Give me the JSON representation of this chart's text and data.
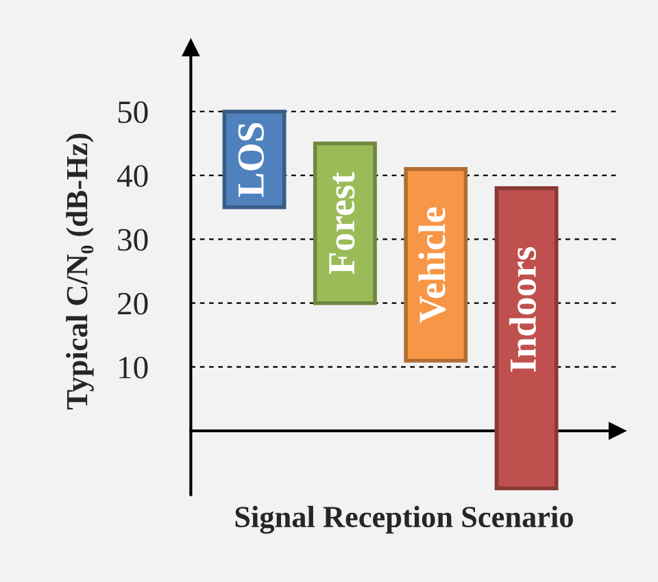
{
  "chart_data": {
    "type": "bar",
    "xlabel": "Signal Reception Scenario",
    "ylabel": "Typical C/N₀ (dB-Hz)",
    "categories": [
      "LOS",
      "Forest",
      "Vehicle",
      "Indoors"
    ],
    "base": [
      35,
      20,
      11,
      -9
    ],
    "values": [
      15,
      25,
      30,
      47
    ],
    "colors": [
      "#4f81bd",
      "#9bbb59",
      "#f79646",
      "#c0504d"
    ],
    "ylim": [
      -10,
      60
    ],
    "yticks": [
      10,
      20,
      30,
      40,
      50
    ],
    "grid": "y",
    "tick_labels": "y"
  }
}
